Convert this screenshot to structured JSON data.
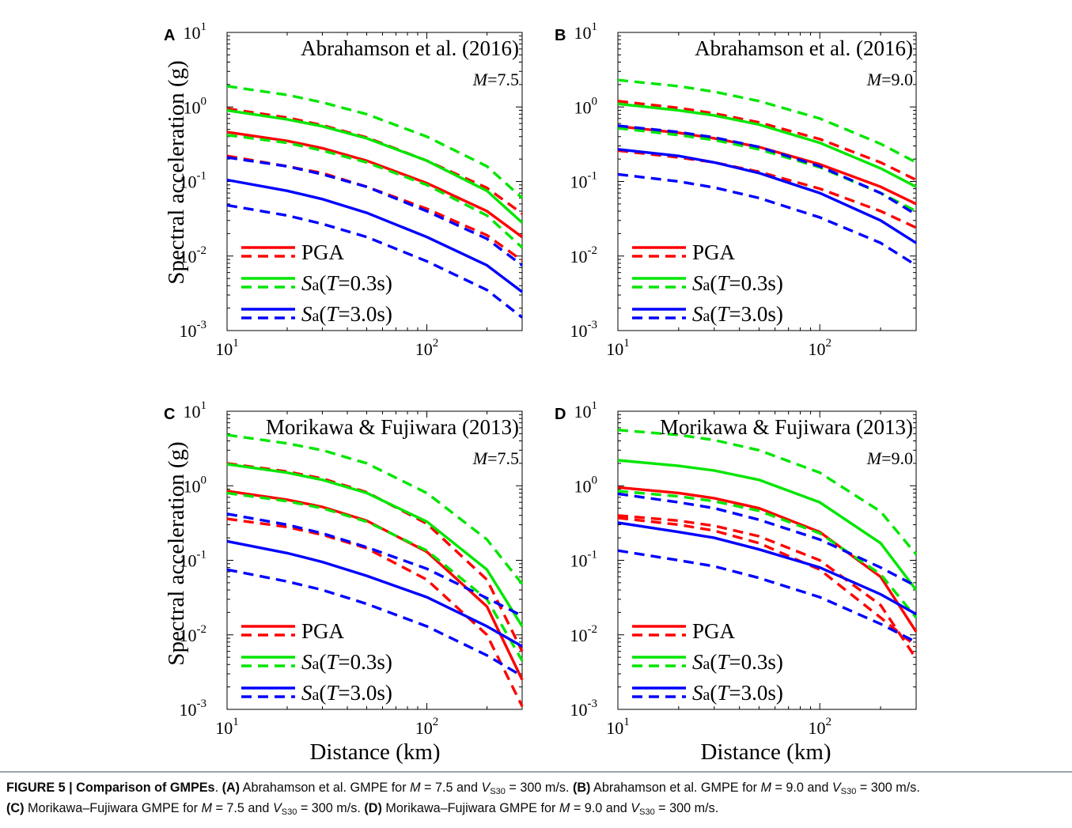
{
  "figure": {
    "ylabel": "Spectral acceleration (g)",
    "xlabel": "Distance (km)",
    "legend": {
      "pga": "PGA",
      "sa03_italic": "S",
      "sa03_sub": "a",
      "sa03_paren_open": "(",
      "sa03_T": "T",
      "sa03_rest": "=0.3s)",
      "sa30_italic": "S",
      "sa30_sub": "a",
      "sa30_paren_open": "(",
      "sa30_T": "T",
      "sa30_rest": "=3.0s)"
    },
    "colors": {
      "pga": "#ff0000",
      "sa03": "#00e600",
      "sa30": "#0000ff"
    }
  },
  "chart_data": [
    {
      "panel": "A",
      "type": "line",
      "title": "Abrahamson et al. (2016)",
      "magnitude_label": "M",
      "magnitude_value": "=7.5",
      "xscale": "log",
      "yscale": "log",
      "xlim": [
        10,
        300
      ],
      "ylim": [
        0.001,
        10
      ],
      "x_ticks": [
        "10^1",
        "10^2"
      ],
      "y_ticks": [
        "10^-3",
        "10^-2",
        "10^-1",
        "10^0",
        "10^1"
      ],
      "x": [
        10,
        20,
        30,
        50,
        100,
        200,
        300
      ],
      "series": [
        {
          "name": "PGA",
          "style": "solid",
          "color": "#ff0000",
          "values": [
            0.46,
            0.35,
            0.28,
            0.19,
            0.095,
            0.04,
            0.018
          ]
        },
        {
          "name": "PGA",
          "style": "dashed",
          "color": "#ff0000",
          "values": [
            0.95,
            0.72,
            0.57,
            0.39,
            0.19,
            0.082,
            0.037
          ]
        },
        {
          "name": "PGA",
          "style": "dashed",
          "color": "#ff0000",
          "values": [
            0.22,
            0.16,
            0.13,
            0.085,
            0.043,
            0.019,
            0.0087
          ]
        },
        {
          "name": "Sa(T=0.3s)",
          "style": "solid",
          "color": "#00e600",
          "values": [
            0.9,
            0.68,
            0.55,
            0.38,
            0.19,
            0.075,
            0.028
          ]
        },
        {
          "name": "Sa(T=0.3s)",
          "style": "dashed",
          "color": "#00e600",
          "values": [
            1.9,
            1.45,
            1.15,
            0.8,
            0.4,
            0.16,
            0.06
          ]
        },
        {
          "name": "Sa(T=0.3s)",
          "style": "dashed",
          "color": "#00e600",
          "values": [
            0.42,
            0.33,
            0.26,
            0.18,
            0.09,
            0.035,
            0.013
          ]
        },
        {
          "name": "Sa(T=3.0s)",
          "style": "solid",
          "color": "#0000ff",
          "values": [
            0.105,
            0.075,
            0.058,
            0.038,
            0.018,
            0.0075,
            0.0033
          ]
        },
        {
          "name": "Sa(T=3.0s)",
          "style": "dashed",
          "color": "#0000ff",
          "values": [
            0.21,
            0.16,
            0.125,
            0.085,
            0.04,
            0.017,
            0.0075
          ]
        },
        {
          "name": "Sa(T=3.0s)",
          "style": "dashed",
          "color": "#0000ff",
          "values": [
            0.048,
            0.035,
            0.027,
            0.018,
            0.0085,
            0.0035,
            0.0015
          ]
        }
      ]
    },
    {
      "panel": "B",
      "type": "line",
      "title": "Abrahamson et al. (2016)",
      "magnitude_label": "M",
      "magnitude_value": "=9.0",
      "xscale": "log",
      "yscale": "log",
      "xlim": [
        10,
        300
      ],
      "ylim": [
        0.001,
        10
      ],
      "x_ticks": [
        "10^1",
        "10^2"
      ],
      "y_ticks": [
        "10^-3",
        "10^-2",
        "10^-1",
        "10^0",
        "10^1"
      ],
      "x": [
        10,
        20,
        30,
        50,
        100,
        200,
        300
      ],
      "series": [
        {
          "name": "PGA",
          "style": "solid",
          "color": "#ff0000",
          "values": [
            0.55,
            0.45,
            0.38,
            0.29,
            0.17,
            0.085,
            0.05
          ]
        },
        {
          "name": "PGA",
          "style": "dashed",
          "color": "#ff0000",
          "values": [
            1.2,
            0.97,
            0.82,
            0.62,
            0.37,
            0.18,
            0.105
          ]
        },
        {
          "name": "PGA",
          "style": "dashed",
          "color": "#ff0000",
          "values": [
            0.26,
            0.21,
            0.18,
            0.135,
            0.08,
            0.04,
            0.024
          ]
        },
        {
          "name": "Sa(T=0.3s)",
          "style": "solid",
          "color": "#00e600",
          "values": [
            1.1,
            0.9,
            0.77,
            0.58,
            0.33,
            0.15,
            0.085
          ]
        },
        {
          "name": "Sa(T=0.3s)",
          "style": "dashed",
          "color": "#00e600",
          "values": [
            2.3,
            1.9,
            1.6,
            1.2,
            0.7,
            0.32,
            0.18
          ]
        },
        {
          "name": "Sa(T=0.3s)",
          "style": "dashed",
          "color": "#00e600",
          "values": [
            0.52,
            0.42,
            0.36,
            0.27,
            0.155,
            0.07,
            0.04
          ]
        },
        {
          "name": "Sa(T=3.0s)",
          "style": "solid",
          "color": "#0000ff",
          "values": [
            0.27,
            0.22,
            0.18,
            0.13,
            0.07,
            0.03,
            0.015
          ]
        },
        {
          "name": "Sa(T=3.0s)",
          "style": "dashed",
          "color": "#0000ff",
          "values": [
            0.56,
            0.46,
            0.39,
            0.29,
            0.16,
            0.07,
            0.036
          ]
        },
        {
          "name": "Sa(T=3.0s)",
          "style": "dashed",
          "color": "#0000ff",
          "values": [
            0.125,
            0.1,
            0.083,
            0.06,
            0.033,
            0.015,
            0.0075
          ]
        }
      ]
    },
    {
      "panel": "C",
      "type": "line",
      "title": "Morikawa & Fujiwara (2013)",
      "magnitude_label": "M",
      "magnitude_value": "=7.5",
      "xscale": "log",
      "yscale": "log",
      "xlim": [
        10,
        300
      ],
      "ylim": [
        0.001,
        10
      ],
      "x_ticks": [
        "10^1",
        "10^2"
      ],
      "y_ticks": [
        "10^-3",
        "10^-2",
        "10^-1",
        "10^0",
        "10^1"
      ],
      "x": [
        10,
        20,
        30,
        50,
        100,
        200,
        300
      ],
      "series": [
        {
          "name": "PGA",
          "style": "solid",
          "color": "#ff0000",
          "values": [
            0.85,
            0.65,
            0.52,
            0.34,
            0.13,
            0.024,
            0.0025
          ]
        },
        {
          "name": "PGA",
          "style": "dashed",
          "color": "#ff0000",
          "values": [
            2.0,
            1.55,
            1.25,
            0.82,
            0.31,
            0.055,
            0.006
          ]
        },
        {
          "name": "PGA",
          "style": "dashed",
          "color": "#ff0000",
          "values": [
            0.36,
            0.28,
            0.22,
            0.145,
            0.055,
            0.01,
            0.0011
          ]
        },
        {
          "name": "Sa(T=0.3s)",
          "style": "solid",
          "color": "#00e600",
          "values": [
            1.95,
            1.5,
            1.2,
            0.8,
            0.33,
            0.075,
            0.013
          ]
        },
        {
          "name": "Sa(T=0.3s)",
          "style": "dashed",
          "color": "#00e600",
          "values": [
            4.8,
            3.7,
            3.0,
            2.0,
            0.8,
            0.19,
            0.048
          ]
        },
        {
          "name": "Sa(T=0.3s)",
          "style": "dashed",
          "color": "#00e600",
          "values": [
            0.8,
            0.62,
            0.5,
            0.33,
            0.135,
            0.03,
            0.0045
          ]
        },
        {
          "name": "Sa(T=3.0s)",
          "style": "solid",
          "color": "#0000ff",
          "values": [
            0.18,
            0.125,
            0.095,
            0.062,
            0.032,
            0.013,
            0.007
          ]
        },
        {
          "name": "Sa(T=3.0s)",
          "style": "dashed",
          "color": "#0000ff",
          "values": [
            0.42,
            0.3,
            0.23,
            0.15,
            0.077,
            0.031,
            0.018
          ]
        },
        {
          "name": "Sa(T=3.0s)",
          "style": "dashed",
          "color": "#0000ff",
          "values": [
            0.075,
            0.052,
            0.04,
            0.026,
            0.013,
            0.0053,
            0.0028
          ]
        }
      ]
    },
    {
      "panel": "D",
      "type": "line",
      "title": "Morikawa & Fujiwara (2013)",
      "magnitude_label": "M",
      "magnitude_value": "=9.0",
      "xscale": "log",
      "yscale": "log",
      "xlim": [
        10,
        300
      ],
      "ylim": [
        0.001,
        10
      ],
      "x_ticks": [
        "10^1",
        "10^2"
      ],
      "y_ticks": [
        "10^-3",
        "10^-2",
        "10^-1",
        "10^0",
        "10^1"
      ],
      "x": [
        10,
        20,
        30,
        50,
        100,
        200,
        300
      ],
      "series": [
        {
          "name": "PGA",
          "style": "solid",
          "color": "#ff0000",
          "values": [
            0.95,
            0.8,
            0.68,
            0.5,
            0.24,
            0.06,
            0.011
          ]
        },
        {
          "name": "PGA",
          "style": "dashed",
          "color": "#ff0000",
          "values": [
            0.4,
            0.34,
            0.29,
            0.21,
            0.1,
            0.025,
            0.0048
          ]
        },
        {
          "name": "PGA",
          "style": "dashed",
          "color": "#ff0000",
          "values": [
            0.37,
            0.3,
            0.25,
            0.17,
            0.075,
            0.017,
            0.007
          ]
        },
        {
          "name": "Sa(T=0.3s)",
          "style": "solid",
          "color": "#00e600",
          "values": [
            2.2,
            1.85,
            1.6,
            1.2,
            0.6,
            0.17,
            0.04
          ]
        },
        {
          "name": "Sa(T=0.3s)",
          "style": "dashed",
          "color": "#00e600",
          "values": [
            5.6,
            4.8,
            4.1,
            3.0,
            1.5,
            0.45,
            0.12
          ]
        },
        {
          "name": "Sa(T=0.3s)",
          "style": "dashed",
          "color": "#00e600",
          "values": [
            0.85,
            0.72,
            0.62,
            0.46,
            0.23,
            0.065,
            0.017
          ]
        },
        {
          "name": "Sa(T=3.0s)",
          "style": "solid",
          "color": "#0000ff",
          "values": [
            0.32,
            0.24,
            0.2,
            0.14,
            0.08,
            0.035,
            0.019
          ]
        },
        {
          "name": "Sa(T=3.0s)",
          "style": "dashed",
          "color": "#0000ff",
          "values": [
            0.78,
            0.6,
            0.5,
            0.35,
            0.19,
            0.08,
            0.045
          ]
        },
        {
          "name": "Sa(T=3.0s)",
          "style": "dashed",
          "color": "#0000ff",
          "values": [
            0.135,
            0.1,
            0.083,
            0.058,
            0.032,
            0.014,
            0.008
          ]
        }
      ]
    }
  ],
  "caption": {
    "figure_label": "FIGURE 5 | Comparison of GMPEs",
    "after_label": ". ",
    "a_label": "(A)",
    "a_text_1": " Abrahamson et al. GMPE for ",
    "a_M": "M",
    "a_text_2": " = 7.5 and ",
    "a_V": "V",
    "a_sub": "S30",
    "a_text_3": " = 300 m/s. ",
    "b_label": "(B)",
    "b_text_1": " Abrahamson et al. GMPE for ",
    "b_M": "M",
    "b_text_2": " = 9.0 and ",
    "b_V": "V",
    "b_sub": "S30",
    "b_text_3": " = 300 m/s.",
    "c_label": "(C)",
    "c_text_1": " Morikawa–Fujiwara GMPE for ",
    "c_M": "M",
    "c_text_2": " = 7.5 and ",
    "c_V": "V",
    "c_sub": "S30",
    "c_text_3": " = 300 m/s. ",
    "d_label": "(D)",
    "d_text_1": " Morikawa–Fujiwara GMPE for ",
    "d_M": "M",
    "d_text_2": " = 9.0 and ",
    "d_V": "V",
    "d_sub": "S30",
    "d_text_3": " = 300 m/s."
  }
}
